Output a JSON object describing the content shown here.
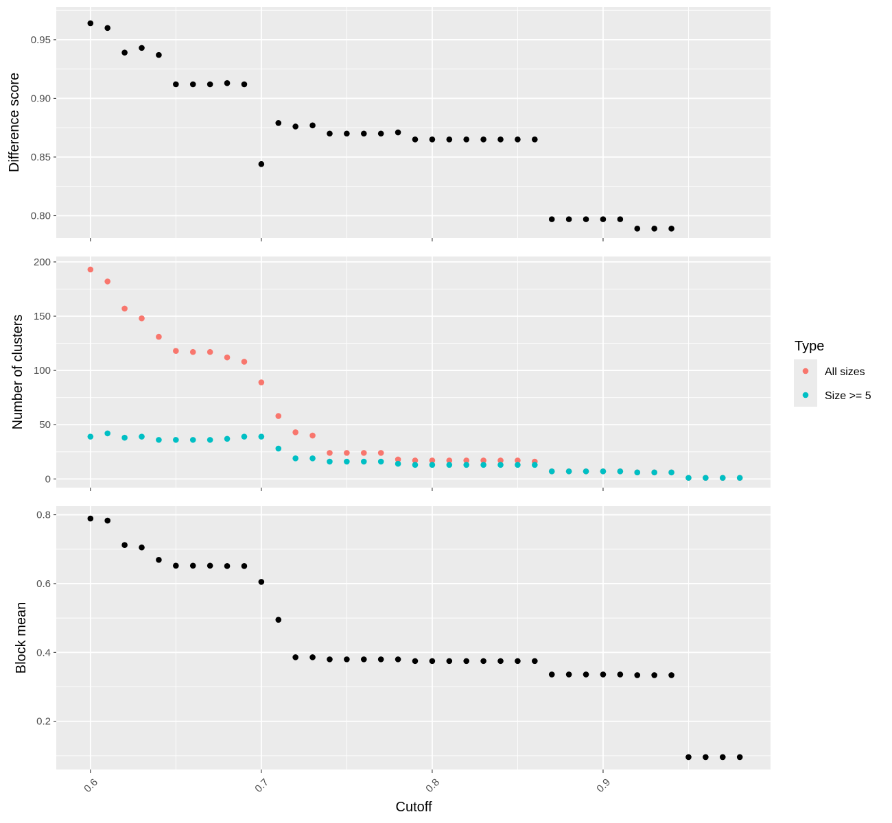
{
  "chart_data": {
    "type": "scatter",
    "xlabel": "Cutoff",
    "x_ticks": [
      "0.6",
      "0.7",
      "0.8",
      "0.9"
    ],
    "xlim": [
      0.58,
      0.998
    ],
    "grid": true,
    "legend": {
      "title": "Type",
      "placement": "right",
      "entries": [
        {
          "label": "All sizes",
          "color": "#F8766D"
        },
        {
          "label": "Size >= 5",
          "color": "#00BFC4"
        }
      ]
    },
    "panels": [
      {
        "ylabel": "Difference score",
        "ylim": [
          0.781,
          0.978
        ],
        "y_ticks": [
          "0.80",
          "0.85",
          "0.90",
          "0.95"
        ],
        "series": [
          {
            "color": "#000000",
            "x": [
              0.6,
              0.61,
              0.62,
              0.63,
              0.64,
              0.65,
              0.66,
              0.67,
              0.68,
              0.69,
              0.7,
              0.71,
              0.72,
              0.73,
              0.74,
              0.75,
              0.76,
              0.77,
              0.78,
              0.79,
              0.8,
              0.81,
              0.82,
              0.83,
              0.84,
              0.85,
              0.86,
              0.87,
              0.88,
              0.89,
              0.9,
              0.91,
              0.92,
              0.93,
              0.94
            ],
            "y": [
              0.964,
              0.96,
              0.939,
              0.943,
              0.937,
              0.912,
              0.912,
              0.912,
              0.913,
              0.912,
              0.844,
              0.879,
              0.876,
              0.877,
              0.87,
              0.87,
              0.87,
              0.87,
              0.871,
              0.865,
              0.865,
              0.865,
              0.865,
              0.865,
              0.865,
              0.865,
              0.865,
              0.797,
              0.797,
              0.797,
              0.797,
              0.797,
              0.789,
              0.789,
              0.789
            ]
          }
        ]
      },
      {
        "ylabel": "Number of clusters",
        "ylim": [
          -8,
          205
        ],
        "y_ticks": [
          "0",
          "50",
          "100",
          "150",
          "200"
        ],
        "series": [
          {
            "name": "All sizes",
            "color": "#F8766D",
            "x": [
              0.6,
              0.61,
              0.62,
              0.63,
              0.64,
              0.65,
              0.66,
              0.67,
              0.68,
              0.69,
              0.7,
              0.71,
              0.72,
              0.73,
              0.74,
              0.75,
              0.76,
              0.77,
              0.78,
              0.79,
              0.8,
              0.81,
              0.82,
              0.83,
              0.84,
              0.85,
              0.86,
              0.87,
              0.88,
              0.89,
              0.9,
              0.91,
              0.92,
              0.93,
              0.94,
              0.95,
              0.96,
              0.97,
              0.98
            ],
            "y": [
              193,
              182,
              157,
              148,
              131,
              118,
              117,
              117,
              112,
              108,
              89,
              58,
              43,
              40,
              24,
              24,
              24,
              24,
              18,
              17,
              17,
              17,
              17,
              17,
              17,
              17,
              16,
              7,
              7,
              7,
              7,
              7,
              6,
              6,
              6,
              1,
              1,
              1,
              1
            ]
          },
          {
            "name": "Size >= 5",
            "color": "#00BFC4",
            "x": [
              0.6,
              0.61,
              0.62,
              0.63,
              0.64,
              0.65,
              0.66,
              0.67,
              0.68,
              0.69,
              0.7,
              0.71,
              0.72,
              0.73,
              0.74,
              0.75,
              0.76,
              0.77,
              0.78,
              0.79,
              0.8,
              0.81,
              0.82,
              0.83,
              0.84,
              0.85,
              0.86,
              0.87,
              0.88,
              0.89,
              0.9,
              0.91,
              0.92,
              0.93,
              0.94,
              0.95,
              0.96,
              0.97,
              0.98
            ],
            "y": [
              39,
              42,
              38,
              39,
              36,
              36,
              36,
              36,
              37,
              39,
              39,
              28,
              19,
              19,
              16,
              16,
              16,
              16,
              14,
              13,
              13,
              13,
              13,
              13,
              13,
              13,
              13,
              7,
              7,
              7,
              7,
              7,
              6,
              6,
              6,
              1,
              1,
              1,
              1
            ]
          }
        ]
      },
      {
        "ylabel": "Block mean",
        "ylim": [
          0.06,
          0.825
        ],
        "y_ticks": [
          "0.2",
          "0.4",
          "0.6",
          "0.8"
        ],
        "series": [
          {
            "color": "#000000",
            "x": [
              0.6,
              0.61,
              0.62,
              0.63,
              0.64,
              0.65,
              0.66,
              0.67,
              0.68,
              0.69,
              0.7,
              0.71,
              0.72,
              0.73,
              0.74,
              0.75,
              0.76,
              0.77,
              0.78,
              0.79,
              0.8,
              0.81,
              0.82,
              0.83,
              0.84,
              0.85,
              0.86,
              0.87,
              0.88,
              0.89,
              0.9,
              0.91,
              0.92,
              0.93,
              0.94,
              0.95,
              0.96,
              0.97,
              0.98
            ],
            "y": [
              0.789,
              0.783,
              0.712,
              0.705,
              0.669,
              0.652,
              0.652,
              0.652,
              0.651,
              0.651,
              0.605,
              0.495,
              0.386,
              0.386,
              0.38,
              0.38,
              0.38,
              0.38,
              0.38,
              0.375,
              0.375,
              0.375,
              0.375,
              0.375,
              0.375,
              0.375,
              0.375,
              0.336,
              0.336,
              0.336,
              0.336,
              0.336,
              0.334,
              0.334,
              0.334,
              0.096,
              0.096,
              0.096,
              0.096
            ]
          }
        ]
      }
    ]
  }
}
